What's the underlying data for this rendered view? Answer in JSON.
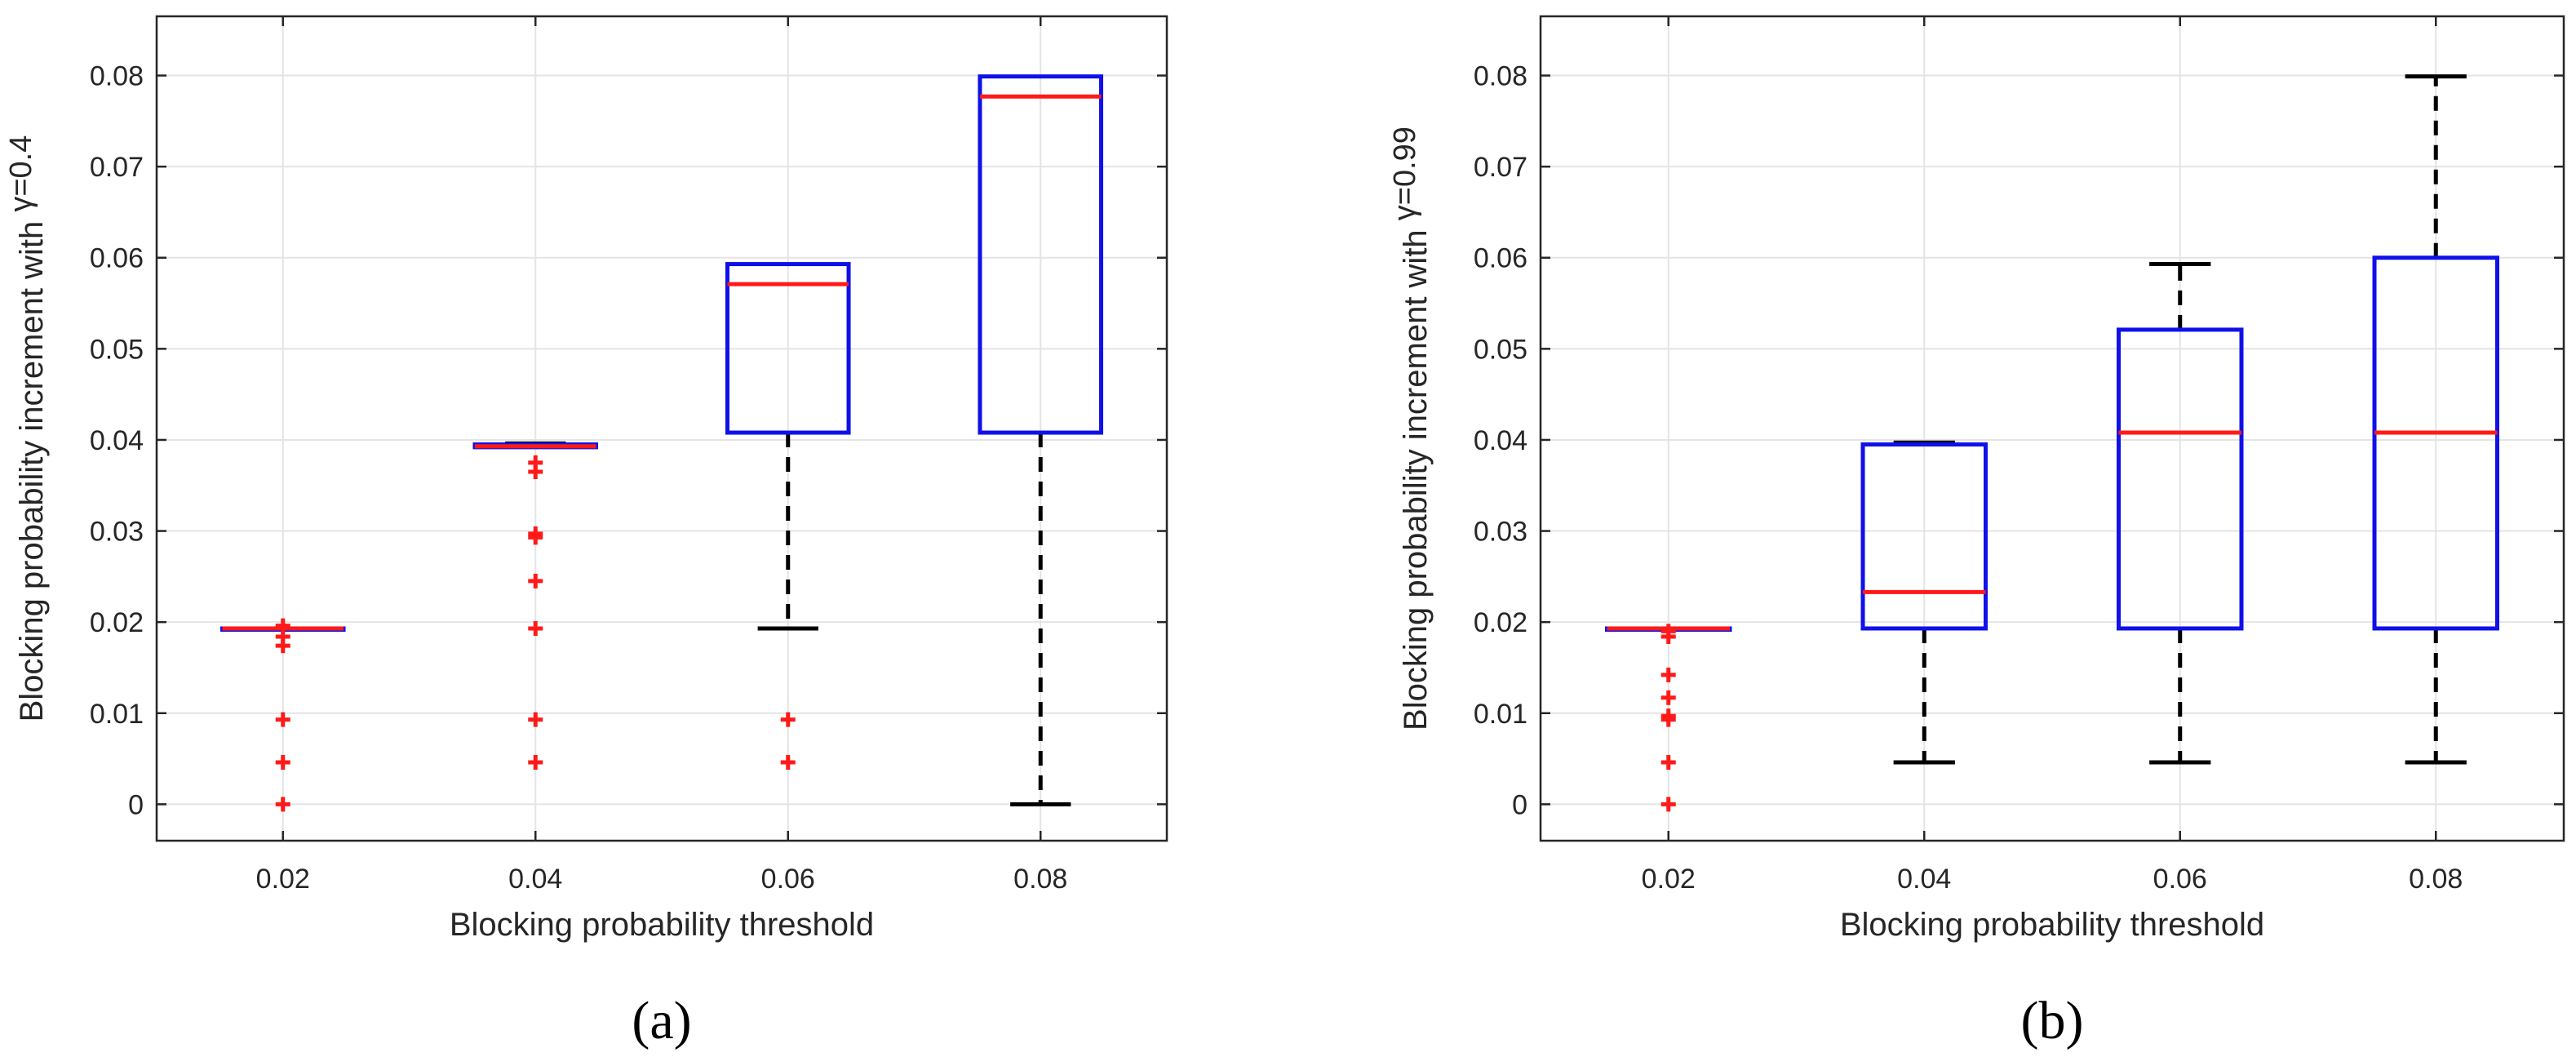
{
  "chart_data": [
    {
      "type": "box",
      "panel_label": "(a)",
      "xlabel": "Blocking probability threshold",
      "ylabel_prefix": "Blocking probability increment with",
      "ylabel_param": "γ=0.4",
      "categories": [
        "0.02",
        "0.04",
        "0.06",
        "0.08"
      ],
      "ylim": [
        -0.004,
        0.0865
      ],
      "yticks": [
        "0",
        "0.01",
        "0.02",
        "0.03",
        "0.04",
        "0.05",
        "0.06",
        "0.07",
        "0.08"
      ],
      "grid": true,
      "boxes": [
        {
          "category": "0.02",
          "whisker_low": 0.0193,
          "q1": 0.0193,
          "median": 0.0193,
          "q3": 0.0193,
          "whisker_high": 0.0193,
          "outliers": [
            0.0,
            0.0046,
            0.0093,
            0.0174,
            0.0184,
            0.0196
          ]
        },
        {
          "category": "0.04",
          "whisker_low": 0.0392,
          "q1": 0.0392,
          "median": 0.0393,
          "q3": 0.0395,
          "whisker_high": 0.0396,
          "outliers": [
            0.0046,
            0.0093,
            0.0193,
            0.0245,
            0.0293,
            0.0297,
            0.0365,
            0.0375
          ]
        },
        {
          "category": "0.06",
          "whisker_low": 0.0193,
          "q1": 0.0408,
          "median": 0.0571,
          "q3": 0.0593,
          "whisker_high": 0.0593,
          "outliers": [
            0.0046,
            0.0093
          ]
        },
        {
          "category": "0.08",
          "whisker_low": 0.0,
          "q1": 0.0408,
          "median": 0.0777,
          "q3": 0.0799,
          "whisker_high": 0.0799,
          "outliers": []
        }
      ]
    },
    {
      "type": "box",
      "panel_label": "(b)",
      "xlabel": "Blocking probability threshold",
      "ylabel_prefix": "Blocking probability increment with",
      "ylabel_param": "γ=0.99",
      "categories": [
        "0.02",
        "0.04",
        "0.06",
        "0.08"
      ],
      "ylim": [
        -0.004,
        0.0865
      ],
      "yticks": [
        "0",
        "0.01",
        "0.02",
        "0.03",
        "0.04",
        "0.05",
        "0.06",
        "0.07",
        "0.08"
      ],
      "grid": true,
      "boxes": [
        {
          "category": "0.02",
          "whisker_low": 0.0193,
          "q1": 0.0193,
          "median": 0.0193,
          "q3": 0.0193,
          "whisker_high": 0.0193,
          "outliers": [
            0.0,
            0.0046,
            0.0093,
            0.0097,
            0.0117,
            0.0142,
            0.0184,
            0.019
          ]
        },
        {
          "category": "0.04",
          "whisker_low": 0.0046,
          "q1": 0.0193,
          "median": 0.0233,
          "q3": 0.0395,
          "whisker_high": 0.0397,
          "outliers": []
        },
        {
          "category": "0.06",
          "whisker_low": 0.0046,
          "q1": 0.0193,
          "median": 0.0408,
          "q3": 0.0521,
          "whisker_high": 0.0593,
          "outliers": []
        },
        {
          "category": "0.08",
          "whisker_low": 0.0046,
          "q1": 0.0193,
          "median": 0.0408,
          "q3": 0.06,
          "whisker_high": 0.0799,
          "outliers": []
        }
      ]
    }
  ],
  "colors": {
    "box": "#1010e8",
    "median": "#ff1a1a",
    "outlier": "#ff1a1a",
    "whisker": "#000000",
    "grid": "#e4e4e4",
    "axis": "#262626"
  }
}
